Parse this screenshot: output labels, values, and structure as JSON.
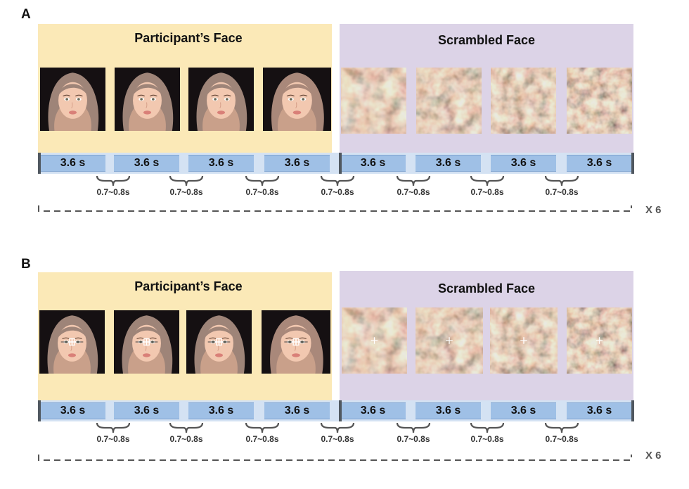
{
  "panels": [
    {
      "label": "A",
      "left_title": "Participant’s Face",
      "right_title": "Scrambled Face",
      "durations": [
        "3.6 s",
        "3.6 s",
        "3.6 s",
        "3.6 s",
        "3.6 s",
        "3.6 s",
        "3.6 s",
        "3.6 s"
      ],
      "isi": [
        "0.7~0.8s",
        "0.7~0.8s",
        "0.7~0.8s",
        "0.7~0.8s",
        "0.7~0.8s",
        "0.7~0.8s",
        "0.7~0.8s"
      ],
      "repeat": "X 6",
      "fixation": false
    },
    {
      "label": "B",
      "left_title": "Participant’s Face",
      "right_title": "Scrambled Face",
      "durations": [
        "3.6 s",
        "3.6 s",
        "3.6 s",
        "3.6 s",
        "3.6 s",
        "3.6 s",
        "3.6 s",
        "3.6 s"
      ],
      "isi": [
        "0.7~0.8s",
        "0.7~0.8s",
        "0.7~0.8s",
        "0.7~0.8s",
        "0.7~0.8s",
        "0.7~0.8s",
        "0.7~0.8s"
      ],
      "repeat": "X 6",
      "fixation": true
    }
  ],
  "colors": {
    "participant_bg": "#fbe9b7",
    "scrambled_bg": "#dcd3e7",
    "segment": "#9fc0e6",
    "gap": "#d4e2f3"
  },
  "icons": {
    "face": "participant-face-image",
    "scrambled": "scrambled-face-image",
    "fixation": "fixation-cross-icon"
  }
}
